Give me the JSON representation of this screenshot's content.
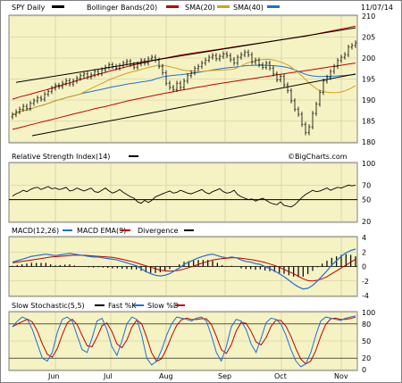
{
  "header": {
    "symbol": "SPY Daily",
    "legend": [
      {
        "label": "Bollinger Bands(20)",
        "color": "#000000"
      },
      {
        "label": "SMA(20)",
        "color": "#c00000"
      },
      {
        "label": "SMA(40)",
        "color": "#d4a017"
      },
      {
        "label": "",
        "color": "#1f6fd6"
      }
    ],
    "date": "11/07/14"
  },
  "colors": {
    "panel_bg": "#f5f3c4",
    "grid": "#c8c59a",
    "candle": "#000000",
    "bb": "#000000",
    "sma20": "#c00000",
    "sma40": "#d4a017",
    "blue": "#1f6fd6",
    "macd_signal": "#c00000"
  },
  "x_labels": [
    "Jun",
    "Jul",
    "Aug",
    "Sep",
    "Oct",
    "Nov"
  ],
  "watermark": "©BigCharts.com",
  "chart_data": [
    {
      "type": "candlestick",
      "title": "SPY Daily",
      "ylim": [
        180,
        210
      ],
      "yticks": [
        180,
        185,
        190,
        195,
        200,
        205,
        210
      ],
      "closes": [
        186.5,
        187.2,
        187.8,
        188.5,
        188.0,
        189.2,
        189.8,
        190.5,
        190.2,
        191.4,
        192.0,
        192.8,
        193.5,
        193.2,
        194.0,
        194.6,
        193.8,
        194.5,
        195.2,
        195.8,
        196.2,
        195.5,
        196.0,
        196.8,
        196.3,
        197.2,
        197.8,
        198.4,
        198.0,
        197.6,
        198.2,
        198.8,
        199.2,
        198.5,
        197.8,
        198.6,
        199.4,
        198.8,
        199.8,
        200.2,
        199.5,
        198.0,
        196.5,
        194.0,
        193.0,
        192.5,
        194.0,
        193.0,
        194.5,
        195.8,
        196.5,
        197.5,
        198.0,
        198.8,
        199.5,
        200.2,
        200.6,
        199.8,
        200.4,
        201.0,
        200.6,
        199.6,
        198.8,
        200.2,
        200.8,
        201.4,
        200.8,
        199.0,
        199.5,
        198.4,
        197.8,
        198.8,
        197.6,
        196.2,
        194.8,
        195.6,
        193.6,
        192.2,
        189.8,
        187.8,
        186.6,
        184.2,
        182.2,
        183.6,
        186.8,
        189.0,
        191.8,
        194.5,
        195.4,
        196.8,
        198.0,
        199.4,
        200.2,
        200.8,
        202.6,
        203.0,
        203.6
      ],
      "bb_upper": [
        190.2,
        190.8,
        191.3,
        191.9,
        192.4,
        193.0,
        193.6,
        194.2,
        194.8,
        195.4,
        196.0,
        196.5,
        197.1,
        197.6,
        198.1,
        198.6,
        199.0,
        199.5,
        199.9,
        200.3,
        200.7,
        201.0,
        201.3,
        201.6,
        201.9,
        202.2,
        202.5,
        202.8,
        203.1,
        203.4,
        203.7,
        204.0,
        204.3,
        204.6,
        204.9,
        205.2,
        205.6,
        206.0,
        206.4,
        206.8,
        207.2,
        207.6
      ],
      "bb_lower": [
        183.0,
        183.5,
        184.0,
        184.5,
        185.0,
        185.5,
        186.0,
        186.5,
        187.0,
        187.5,
        188.0,
        188.4,
        188.9,
        189.4,
        189.9,
        190.3,
        190.7,
        191.1,
        191.5,
        191.9,
        192.3,
        192.6,
        193.0,
        193.3,
        193.7,
        194.0,
        194.3,
        194.6,
        194.9,
        195.2,
        195.5,
        195.8,
        196.1,
        196.4,
        196.7,
        197.0,
        197.3,
        197.6,
        197.9,
        198.2,
        198.5,
        198.8
      ]
    },
    {
      "type": "line",
      "title": "Relative Strength Index(14)",
      "ylim": [
        20,
        100
      ],
      "yticks": [
        20,
        50,
        70,
        100
      ],
      "values": [
        55,
        58,
        60,
        63,
        61,
        64,
        66,
        67,
        64,
        66,
        68,
        65,
        66,
        64,
        65,
        67,
        62,
        63,
        66,
        64,
        62,
        64,
        66,
        61,
        60,
        63,
        66,
        62,
        59,
        61,
        64,
        60,
        57,
        54,
        52,
        47,
        45,
        49,
        46,
        49,
        54,
        56,
        58,
        60,
        62,
        59,
        60,
        63,
        61,
        59,
        58,
        60,
        62,
        64,
        60,
        58,
        61,
        63,
        65,
        61,
        59,
        60,
        63,
        57,
        54,
        52,
        50,
        51,
        48,
        50,
        52,
        49,
        46,
        44,
        43,
        47,
        42,
        41,
        40,
        43,
        48,
        53,
        57,
        60,
        63,
        61,
        62,
        64,
        66,
        63,
        65,
        67,
        66,
        68,
        70,
        69,
        70
      ]
    },
    {
      "type": "bar",
      "title": "MACD(12,26)",
      "series_names": [
        "MACD(12,26)",
        "MACD EMA(9)",
        "Divergence"
      ],
      "ylim": [
        -4,
        4
      ],
      "yticks": [
        -4,
        -2,
        0,
        2,
        4
      ],
      "macd": [
        0.6,
        0.8,
        1.0,
        1.2,
        1.4,
        1.5,
        1.6,
        1.7,
        1.6,
        1.5,
        1.6,
        1.7,
        1.8,
        1.7,
        1.6,
        1.5,
        1.4,
        1.3,
        1.3,
        1.2,
        1.1,
        1.0,
        0.9,
        0.7,
        0.5,
        0.3,
        0.1,
        -0.3,
        -0.7,
        -1.0,
        -1.2,
        -1.3,
        -1.2,
        -1.0,
        -0.6,
        -0.2,
        0.3,
        0.6,
        0.9,
        1.2,
        1.4,
        1.6,
        1.7,
        1.5,
        1.3,
        1.2,
        1.3,
        1.2,
        0.9,
        0.7,
        0.6,
        0.4,
        0.3,
        0.0,
        -0.3,
        -0.6,
        -1.0,
        -1.4,
        -1.9,
        -2.4,
        -2.8,
        -3.1,
        -3.0,
        -2.6,
        -2.0,
        -1.3,
        -0.6,
        0.2,
        0.8,
        1.4,
        1.9,
        2.2,
        2.4
      ],
      "signal": [
        0.5,
        0.6,
        0.7,
        0.8,
        0.9,
        1.0,
        1.1,
        1.2,
        1.3,
        1.35,
        1.4,
        1.45,
        1.5,
        1.55,
        1.55,
        1.55,
        1.5,
        1.45,
        1.4,
        1.35,
        1.3,
        1.25,
        1.15,
        1.0,
        0.85,
        0.7,
        0.5,
        0.3,
        0.1,
        -0.1,
        -0.3,
        -0.5,
        -0.6,
        -0.65,
        -0.6,
        -0.5,
        -0.35,
        -0.15,
        0.05,
        0.3,
        0.5,
        0.7,
        0.9,
        1.0,
        1.1,
        1.15,
        1.2,
        1.2,
        1.15,
        1.05,
        0.95,
        0.85,
        0.7,
        0.55,
        0.35,
        0.15,
        -0.1,
        -0.4,
        -0.7,
        -1.0,
        -1.35,
        -1.7,
        -1.95,
        -2.0,
        -1.9,
        -1.7,
        -1.4,
        -1.0,
        -0.6,
        -0.2,
        0.2,
        0.6,
        1.0
      ]
    },
    {
      "type": "line",
      "title": "Slow Stochastic(5,5)",
      "series_names": [
        "Slow Stochastic(5,5)",
        "Fast %K",
        "Slow %D"
      ],
      "ylim": [
        0,
        100
      ],
      "yticks": [
        0,
        20,
        50,
        80,
        100
      ],
      "fast_k": [
        75,
        85,
        92,
        88,
        70,
        45,
        20,
        15,
        30,
        65,
        88,
        92,
        85,
        60,
        35,
        30,
        55,
        85,
        90,
        70,
        40,
        25,
        50,
        80,
        92,
        88,
        60,
        20,
        8,
        15,
        35,
        60,
        80,
        92,
        90,
        88,
        85,
        90,
        92,
        85,
        60,
        30,
        15,
        40,
        75,
        88,
        85,
        70,
        45,
        30,
        55,
        82,
        90,
        88,
        80,
        60,
        35,
        15,
        5,
        10,
        30,
        60,
        85,
        92,
        90,
        88,
        86,
        90,
        92,
        94
      ]
    }
  ]
}
